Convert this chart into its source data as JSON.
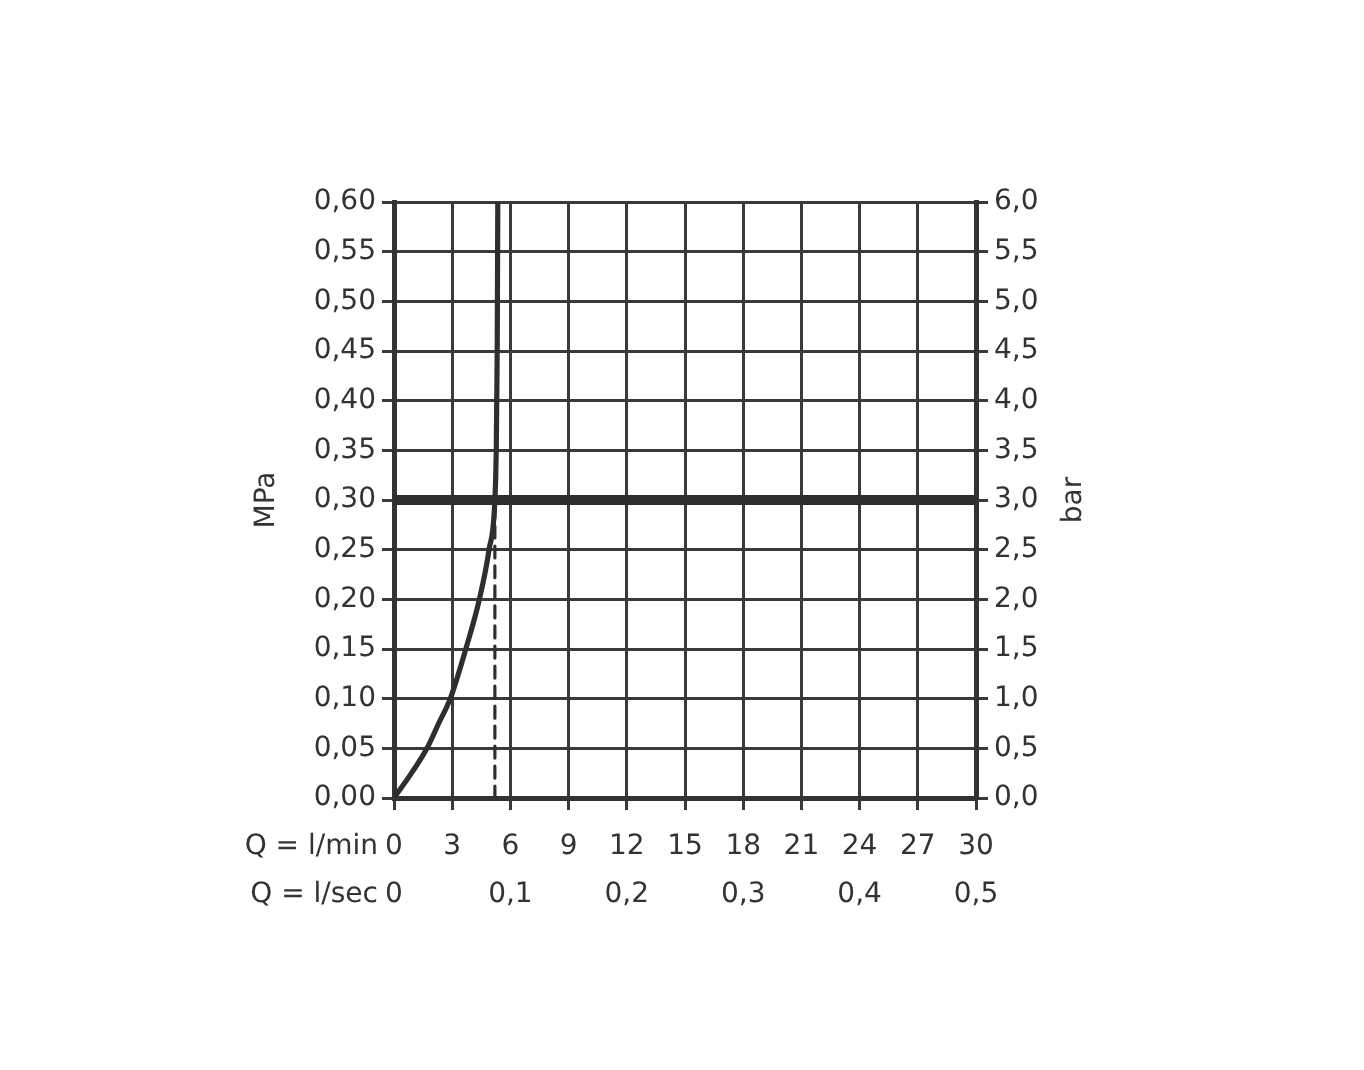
{
  "chart_data": {
    "type": "line",
    "xlabel": "Q = l/min",
    "x2label": "Q = l/sec",
    "ylabel": "MPa",
    "y2label": "bar",
    "x": [
      0,
      0.9,
      1.7,
      2.3,
      2.9,
      3.7,
      4.4,
      4.9,
      5.2,
      5.27,
      5.32,
      5.35
    ],
    "series": [
      {
        "color": "#2e2e2e",
        "values": [
          0,
          0.025,
          0.05,
          0.075,
          0.1,
          0.15,
          0.2,
          0.25,
          0.3,
          0.35,
          0.45,
          0.6
        ]
      },
      {
        "type": "line",
        "x": [
          5.2,
          5.2
        ],
        "values": [
          0,
          0.3
        ],
        "color": "#2e2e2e",
        "line_style": "dashed"
      }
    ],
    "xlim": [
      0,
      30
    ],
    "xticks": [
      0,
      3,
      6,
      9,
      12,
      15,
      18,
      21,
      24,
      27,
      30
    ],
    "x2lim": [
      0,
      0.5
    ],
    "x2ticks": [
      0,
      {
        "value": 0.1,
        "label": "0,1"
      },
      {
        "value": 0.2,
        "label": "0,2"
      },
      {
        "value": 0.3,
        "label": "0,3"
      },
      {
        "value": 0.4,
        "label": "0,4"
      },
      {
        "value": 0.5,
        "label": "0,5"
      }
    ],
    "ylim": [
      0,
      0.6
    ],
    "yticks": [
      {
        "value": 0,
        "label": "0,00"
      },
      {
        "value": 0.05,
        "label": "0,05"
      },
      {
        "value": 0.1,
        "label": "0,10"
      },
      {
        "value": 0.15,
        "label": "0,15"
      },
      {
        "value": 0.2,
        "label": "0,20"
      },
      {
        "value": 0.25,
        "label": "0,25"
      },
      {
        "value": 0.3,
        "label": "0,30"
      },
      {
        "value": 0.35,
        "label": "0,35"
      },
      {
        "value": 0.4,
        "label": "0,40"
      },
      {
        "value": 0.45,
        "label": "0,45"
      },
      {
        "value": 0.5,
        "label": "0,50"
      },
      {
        "value": 0.55,
        "label": "0,55"
      },
      {
        "value": 0.6,
        "label": "0,60"
      }
    ],
    "y2lim": [
      0,
      6
    ],
    "y2ticks": [
      {
        "value": 0,
        "label": "0,0"
      },
      {
        "value": 0.5,
        "label": "0,5"
      },
      {
        "value": 1,
        "label": "1,0"
      },
      {
        "value": 1.5,
        "label": "1,5"
      },
      {
        "value": 2,
        "label": "2,0"
      },
      {
        "value": 2.5,
        "label": "2,5"
      },
      {
        "value": 3,
        "label": "3,0"
      },
      {
        "value": 3.5,
        "label": "3,5"
      },
      {
        "value": 4,
        "label": "4,0"
      },
      {
        "value": 4.5,
        "label": "4,5"
      },
      {
        "value": 5,
        "label": "5,0"
      },
      {
        "value": 5.5,
        "label": "5,5"
      },
      {
        "value": 6,
        "label": "6,0"
      }
    ],
    "ref_lines": [
      {
        "axis": "y",
        "value": 0.3,
        "color": "#2e2e2e"
      }
    ],
    "grid": true,
    "marker": "none",
    "line_style": "solid"
  }
}
